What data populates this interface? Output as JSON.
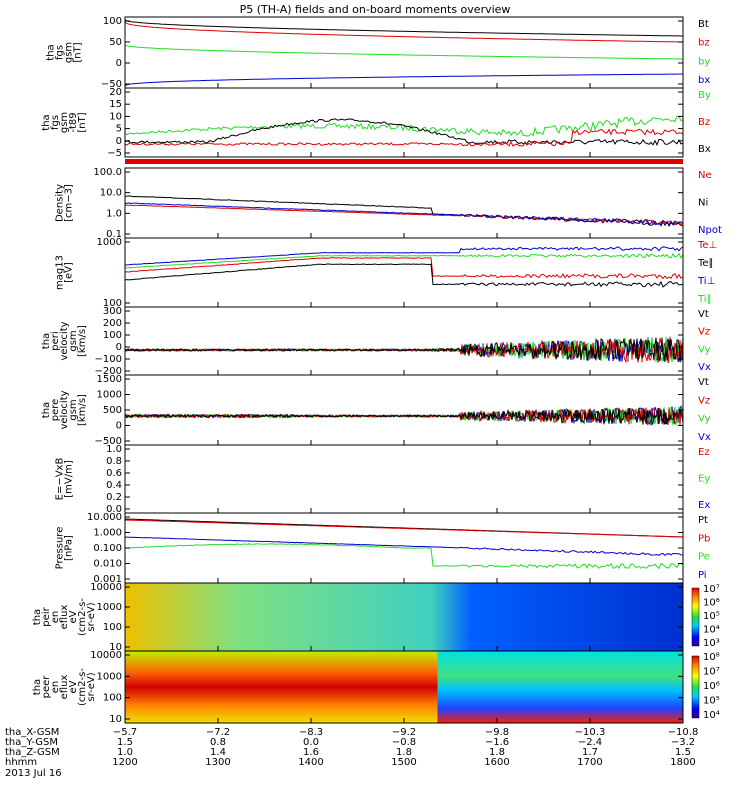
{
  "title": "P5 (TH-A) fields and on-board moments overview",
  "colors": {
    "black": "#000000",
    "red": "#e00000",
    "green": "#22dd22",
    "blue": "#0000d0"
  },
  "panels": [
    {
      "id": "fgs",
      "ylabel": [
        "tha",
        "fgs",
        "gsm",
        "[nT]"
      ],
      "yticks": [
        "100",
        "50",
        "0",
        "−50"
      ],
      "legend": [
        {
          "t": "Bt",
          "c": "black"
        },
        {
          "t": "bz",
          "c": "red"
        },
        {
          "t": "by",
          "c": "green"
        },
        {
          "t": "bx",
          "c": "blue"
        }
      ]
    },
    {
      "id": "fgs_dsl",
      "ylabel": [
        "tha",
        "fgs",
        "gsm",
        "-t89",
        "[nT]"
      ],
      "yticks": [
        "20",
        "15",
        "10",
        "5",
        "0",
        "−5"
      ],
      "legend": [
        {
          "t": "By",
          "c": "green"
        },
        {
          "t": "Bz",
          "c": "red"
        },
        {
          "t": "Bx",
          "c": "black"
        }
      ]
    },
    {
      "id": "density",
      "ylabel": [
        "Density",
        "[cm−3]"
      ],
      "yticks": [
        "100.0",
        "10.0",
        "1.0",
        "0.1"
      ],
      "legend": [
        {
          "t": "Ne",
          "c": "red"
        },
        {
          "t": "Ni",
          "c": "black"
        },
        {
          "t": "Npot",
          "c": "blue"
        }
      ]
    },
    {
      "id": "temp",
      "ylabel": [
        "mag13",
        "[eV]"
      ],
      "yticks": [
        "1000",
        "100"
      ],
      "legend": [
        {
          "t": "Te⊥",
          "c": "red"
        },
        {
          "t": "Te∥",
          "c": "black"
        },
        {
          "t": "Ti⊥",
          "c": "blue"
        },
        {
          "t": "Ti∥",
          "c": "green"
        }
      ]
    },
    {
      "id": "vperi",
      "ylabel": [
        "tha",
        "peri",
        "velocity",
        "gsm",
        "[km/s]"
      ],
      "yticks": [
        "300",
        "200",
        "100",
        "0",
        "−100",
        "−200"
      ],
      "legend": [
        {
          "t": "Vt",
          "c": "black"
        },
        {
          "t": "Vz",
          "c": "red"
        },
        {
          "t": "Vy",
          "c": "green"
        },
        {
          "t": "Vx",
          "c": "blue"
        }
      ]
    },
    {
      "id": "vpere",
      "ylabel": [
        "tha",
        "pere",
        "velocity",
        "gsm",
        "[km/s]"
      ],
      "yticks": [
        "1500",
        "1000",
        "500",
        "0",
        "−500"
      ],
      "legend": [
        {
          "t": "Vt",
          "c": "black"
        },
        {
          "t": "Vz",
          "c": "red"
        },
        {
          "t": "Vy",
          "c": "green"
        },
        {
          "t": "Vx",
          "c": "blue"
        }
      ]
    },
    {
      "id": "efield",
      "ylabel": [
        "E=−VxB",
        "[mV/m]"
      ],
      "yticks": [
        "1.0",
        "0.8",
        "0.6",
        "0.4",
        "0.2",
        "0.0"
      ],
      "legend": [
        {
          "t": "Ez",
          "c": "red"
        },
        {
          "t": "Ey",
          "c": "green"
        },
        {
          "t": "Ex",
          "c": "blue"
        }
      ]
    },
    {
      "id": "pressure",
      "ylabel": [
        "Pressure",
        "[nPa]"
      ],
      "yticks": [
        "10.000",
        "1.000",
        "0.100",
        "0.010",
        "0.001"
      ],
      "legend": [
        {
          "t": "Pt",
          "c": "black"
        },
        {
          "t": "Pb",
          "c": "red"
        },
        {
          "t": "Pe",
          "c": "green"
        },
        {
          "t": "Pi",
          "c": "blue"
        }
      ]
    },
    {
      "id": "peir",
      "ylabel": [
        "tha",
        "peir",
        "en",
        "eflux",
        "eV",
        "(cm2-s-",
        "sr-eV)"
      ],
      "yticks": [
        "10000",
        "1000",
        "100",
        "10"
      ],
      "colorbar": [
        "10⁷",
        "10⁶",
        "10⁵",
        "10⁴",
        "10³"
      ]
    },
    {
      "id": "peer",
      "ylabel": [
        "tha",
        "peer",
        "en",
        "eflux",
        "eV",
        "(cm2-s-",
        "sr-eV)"
      ],
      "yticks": [
        "10000",
        "1000",
        "100",
        "10"
      ],
      "colorbar": [
        "10⁸",
        "10⁷",
        "10⁶",
        "10⁵",
        "10⁴"
      ]
    }
  ],
  "xaxis": {
    "rows": [
      {
        "label": "tha_X-GSM",
        "values": [
          "−5.7",
          "−7.2",
          "−8.3",
          "−9.2",
          "−9.8",
          "−10.3",
          "−10.8"
        ]
      },
      {
        "label": "tha_Y-GSM",
        "values": [
          "1.5",
          "0.8",
          "0.0",
          "−0.8",
          "−1.6",
          "−2.4",
          "−3.2"
        ]
      },
      {
        "label": "tha_Z-GSM",
        "values": [
          "1.0",
          "1.4",
          "1.6",
          "1.8",
          "1.8",
          "1.7",
          "1.5"
        ]
      },
      {
        "label": "hhmm",
        "values": [
          "1200",
          "1300",
          "1400",
          "1500",
          "1600",
          "1700",
          "1800"
        ]
      }
    ],
    "date": "2013 Jul 16"
  }
}
